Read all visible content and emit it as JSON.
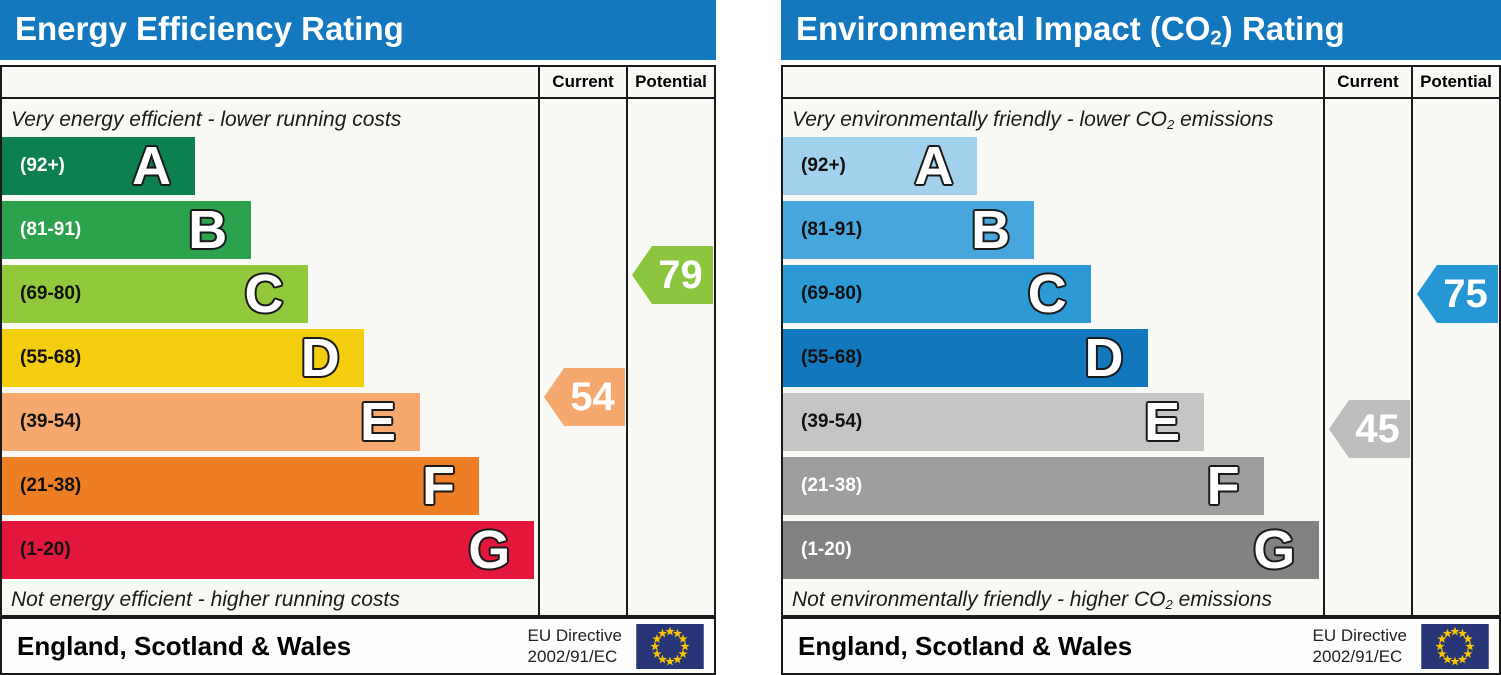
{
  "chart_data": [
    {
      "type": "bar",
      "title": "Energy Efficiency Rating",
      "categories": [
        "A (92+)",
        "B (81-91)",
        "C (69-80)",
        "D (55-68)",
        "E (39-54)",
        "F (21-38)",
        "G (1-20)"
      ],
      "series": [
        {
          "name": "Current",
          "values": [
            54
          ]
        },
        {
          "name": "Potential",
          "values": [
            79
          ]
        }
      ],
      "current_band": "E",
      "potential_band": "C",
      "top_caption": "Very energy efficient - lower running costs",
      "bottom_caption": "Not energy efficient - higher running costs",
      "footer": "England, Scotland & Wales",
      "directive": "EU Directive 2002/91/EC",
      "legend_position": "top-right-columns"
    },
    {
      "type": "bar",
      "title": "Environmental Impact (CO2) Rating",
      "categories": [
        "A (92+)",
        "B (81-91)",
        "C (69-80)",
        "D (55-68)",
        "E (39-54)",
        "F (21-38)",
        "G (1-20)"
      ],
      "series": [
        {
          "name": "Current",
          "values": [
            45
          ]
        },
        {
          "name": "Potential",
          "values": [
            75
          ]
        }
      ],
      "current_band": "E",
      "potential_band": "C",
      "top_caption": "Very environmentally friendly - lower CO2 emissions",
      "bottom_caption": "Not environmentally friendly - higher CO2 emissions",
      "footer": "England, Scotland & Wales",
      "directive": "EU Directive 2002/91/EC",
      "legend_position": "top-right-columns"
    }
  ],
  "header_color": "#1478be",
  "eu_flag": {
    "field_color": "#283577",
    "star_color": "#f8c300"
  },
  "charts": [
    {
      "title": {
        "pre": "Energy Efficiency Rating",
        "sub": "",
        "post": ""
      },
      "columns": {
        "current": "Current",
        "potential": "Potential"
      },
      "caption_top": {
        "pre": "Very energy efficient - lower running costs",
        "sub": "",
        "post": ""
      },
      "caption_bottom": {
        "pre": "Not energy efficient - higher running costs",
        "sub": "",
        "post": ""
      },
      "bands": [
        {
          "letter": "A",
          "range": "(92+)",
          "min": 92,
          "max": 100,
          "width_pct": 36,
          "color": "#0d804f",
          "label_color": "#ffffff"
        },
        {
          "letter": "B",
          "range": "(81-91)",
          "min": 81,
          "max": 91,
          "width_pct": 46.5,
          "color": "#2ca24d",
          "label_color": "#ffffff"
        },
        {
          "letter": "C",
          "range": "(69-80)",
          "min": 69,
          "max": 80,
          "width_pct": 57,
          "color": "#92c83c",
          "label_color": "#111111"
        },
        {
          "letter": "D",
          "range": "(55-68)",
          "min": 55,
          "max": 68,
          "width_pct": 67.5,
          "color": "#f3cd0e",
          "label_color": "#111111"
        },
        {
          "letter": "E",
          "range": "(39-54)",
          "min": 39,
          "max": 54,
          "width_pct": 78,
          "color": "#f5a96e",
          "label_color": "#111111"
        },
        {
          "letter": "F",
          "range": "(21-38)",
          "min": 21,
          "max": 38,
          "width_pct": 89,
          "color": "#ee7e24",
          "label_color": "#111111"
        },
        {
          "letter": "G",
          "range": "(1-20)",
          "min": 1,
          "max": 20,
          "width_pct": 99.3,
          "color": "#e3173c",
          "label_color": "#111111"
        }
      ],
      "current": {
        "value": 54,
        "color": "#f5a96e"
      },
      "potential": {
        "value": 79,
        "color": "#8cc63f"
      },
      "footer": {
        "region": "England, Scotland & Wales",
        "directive_line1": "EU Directive",
        "directive_line2": "2002/91/EC"
      }
    },
    {
      "title": {
        "pre": "Environmental Impact (CO",
        "sub": "2",
        "post": ") Rating"
      },
      "columns": {
        "current": "Current",
        "potential": "Potential"
      },
      "caption_top": {
        "pre": "Very environmentally friendly - lower CO",
        "sub": "2",
        "post": " emissions"
      },
      "caption_bottom": {
        "pre": "Not environmentally friendly - higher CO",
        "sub": "2",
        "post": " emissions"
      },
      "bands": [
        {
          "letter": "A",
          "range": "(92+)",
          "min": 92,
          "max": 100,
          "width_pct": 36,
          "color": "#a1d1ec",
          "label_color": "#111111"
        },
        {
          "letter": "B",
          "range": "(81-91)",
          "min": 81,
          "max": 91,
          "width_pct": 46.5,
          "color": "#47a7dc",
          "label_color": "#111111"
        },
        {
          "letter": "C",
          "range": "(69-80)",
          "min": 69,
          "max": 80,
          "width_pct": 57,
          "color": "#2b99d3",
          "label_color": "#111111"
        },
        {
          "letter": "D",
          "range": "(55-68)",
          "min": 55,
          "max": 68,
          "width_pct": 67.5,
          "color": "#1277bd",
          "label_color": "#111111"
        },
        {
          "letter": "E",
          "range": "(39-54)",
          "min": 39,
          "max": 54,
          "width_pct": 78,
          "color": "#c5c5c5",
          "label_color": "#111111"
        },
        {
          "letter": "F",
          "range": "(21-38)",
          "min": 21,
          "max": 38,
          "width_pct": 89,
          "color": "#9e9e9e",
          "label_color": "#ffffff"
        },
        {
          "letter": "G",
          "range": "(1-20)",
          "min": 1,
          "max": 20,
          "width_pct": 99.3,
          "color": "#828282",
          "label_color": "#ffffff"
        }
      ],
      "current": {
        "value": 45,
        "color": "#bdbdbd"
      },
      "potential": {
        "value": 75,
        "color": "#2697d5"
      },
      "footer": {
        "region": "England, Scotland & Wales",
        "directive_line1": "EU Directive",
        "directive_line2": "2002/91/EC"
      }
    }
  ]
}
